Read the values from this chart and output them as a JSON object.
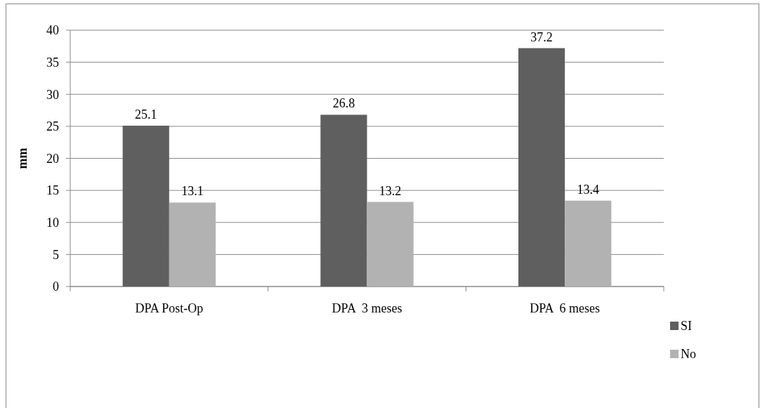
{
  "chart_data": {
    "type": "bar",
    "ylabel": "mm",
    "categories": [
      "DPA Post-Op",
      "DPA  3 meses",
      "DPA  6 meses"
    ],
    "series": [
      {
        "name": "SI",
        "color": "#5f5f5f",
        "values": [
          25.1,
          26.8,
          37.2
        ]
      },
      {
        "name": "No",
        "color": "#b2b2b2",
        "values": [
          13.1,
          13.2,
          13.4
        ]
      }
    ],
    "ylim": [
      0,
      40
    ],
    "yticks": [
      0,
      5,
      10,
      15,
      20,
      25,
      30,
      35,
      40
    ],
    "grid": "y",
    "legend": "right",
    "data_labels": true
  }
}
